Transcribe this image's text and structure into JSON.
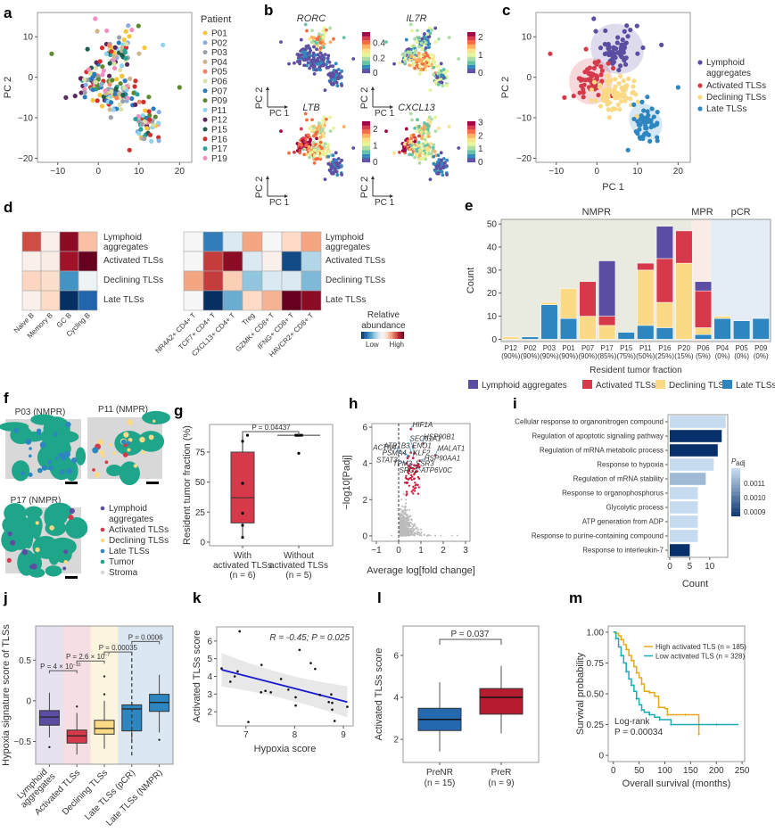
{
  "panel_labels": [
    "a",
    "b",
    "c",
    "d",
    "e",
    "f",
    "g",
    "h",
    "i",
    "j",
    "k",
    "l",
    "m"
  ],
  "colors": {
    "lymphoid": "#5b4ea2",
    "activated": "#d63a4a",
    "declining": "#fbd985",
    "late": "#2e86c1",
    "tumor": "#1fa58a",
    "stroma": "#d8d8d8"
  },
  "chart_data": [
    {
      "id": "a",
      "type": "scatter",
      "xlabel": "PC 1",
      "ylabel": "PC 2",
      "xlim": [
        -15,
        23
      ],
      "ylim": [
        -21,
        16
      ],
      "xticks": [
        -10,
        0,
        10,
        20
      ],
      "yticks": [
        -20,
        -10,
        0,
        10
      ],
      "legend_title": "Patient",
      "legend_position": "right",
      "legend": [
        {
          "name": "P01",
          "color": "#f5c63c"
        },
        {
          "name": "P02",
          "color": "#8aaee0"
        },
        {
          "name": "P03",
          "color": "#9aa0a6"
        },
        {
          "name": "P04",
          "color": "#d2b48c"
        },
        {
          "name": "P05",
          "color": "#f4845f"
        },
        {
          "name": "P06",
          "color": "#d9e3a5"
        },
        {
          "name": "P07",
          "color": "#2b7bba"
        },
        {
          "name": "P09",
          "color": "#5c8a2e"
        },
        {
          "name": "P11",
          "color": "#8fd3f0"
        },
        {
          "name": "P12",
          "color": "#5a2a5e"
        },
        {
          "name": "P15",
          "color": "#1d5f50"
        },
        {
          "name": "P16",
          "color": "#d32f2f"
        },
        {
          "name": "P17",
          "color": "#2aa198"
        },
        {
          "name": "P19",
          "color": "#f48fc0"
        }
      ]
    },
    {
      "id": "b",
      "type": "scatter",
      "subplots": [
        {
          "gene": "RORC",
          "colorbar_ticks": [
            "0",
            "0.2",
            "0.4"
          ],
          "colorbar_max": 0.55
        },
        {
          "gene": "IL7R",
          "colorbar_ticks": [
            "0",
            "1",
            "2"
          ],
          "colorbar_max": 2.3
        },
        {
          "gene": "LTB",
          "colorbar_ticks": [
            "0",
            "1",
            "2"
          ],
          "colorbar_max": 2.5
        },
        {
          "gene": "CXCL13",
          "colorbar_ticks": [
            "0",
            "1",
            "2",
            "3"
          ],
          "colorbar_max": 3.1
        }
      ],
      "xlabel": "PC 1",
      "ylabel": "PC 2"
    },
    {
      "id": "c",
      "type": "scatter",
      "xlabel": "PC 1",
      "ylabel": "PC 2",
      "xlim": [
        -15,
        23
      ],
      "ylim": [
        -21,
        16
      ],
      "xticks": [
        -10,
        0,
        10,
        20
      ],
      "yticks": [
        -20,
        -10,
        0,
        10
      ],
      "legend_position": "right",
      "legend": [
        "Lymphoid aggregates",
        "Activated TLSs",
        "Declining TLSs",
        "Late TLSs"
      ],
      "clusters": [
        {
          "name": "Lymphoid aggregates",
          "center": [
            5,
            7
          ],
          "spread": [
            3.5,
            3.2
          ]
        },
        {
          "name": "Activated TLSs",
          "center": [
            -1.5,
            -1
          ],
          "spread": [
            2.8,
            3
          ]
        },
        {
          "name": "Declining TLSs",
          "center": [
            5,
            -4
          ],
          "spread": [
            3.5,
            3
          ]
        },
        {
          "name": "Late TLSs",
          "center": [
            12,
            -11
          ],
          "spread": [
            2,
            2.5
          ]
        }
      ]
    },
    {
      "id": "d",
      "type": "heatmap",
      "rows": [
        "Lymphoid aggregates",
        "Activated TLSs",
        "Declining TLSs",
        "Late TLSs"
      ],
      "left": {
        "columns": [
          "Naive B",
          "Memory B",
          "GC B",
          "Cycling B"
        ],
        "values": [
          [
            0.65,
            0.05,
            0.9,
            0.3
          ],
          [
            0.05,
            0.08,
            0.85,
            1.0
          ],
          [
            0.22,
            0.18,
            -0.6,
            -0.05
          ],
          [
            0.05,
            0.2,
            -1.0,
            -0.8
          ]
        ]
      },
      "right": {
        "columns": [
          "NR4A2+ CD4+ T",
          "TCF7+ CD4+ T",
          "CXCL13+ CD4+ T",
          "Treg",
          "GZMK+ CD8+ T",
          "IFNG+ CD8+ T",
          "HAVCR2+ CD8+ T"
        ],
        "values": [
          [
            0.0,
            -0.7,
            -0.15,
            0.4,
            0.0,
            0.2,
            0.4
          ],
          [
            0.0,
            0.7,
            0.9,
            -0.15,
            0.05,
            -0.9,
            -0.3
          ],
          [
            0.4,
            0.7,
            0.25,
            -0.4,
            -0.15,
            -0.15,
            -0.45
          ],
          [
            0.0,
            -1.0,
            -0.5,
            0.2,
            0.35,
            1.0,
            0.9
          ]
        ]
      },
      "colorbar": {
        "title": "Relative abundance",
        "low": "Low",
        "high": "High"
      }
    },
    {
      "id": "e",
      "type": "bar",
      "stacked": true,
      "ylabel": "Count",
      "xlabel": "Resident tumor fraction",
      "ylim": [
        0,
        52
      ],
      "yticks": [
        0,
        10,
        20,
        30,
        40,
        50
      ],
      "groups": [
        {
          "name": "NMPR",
          "from": 0,
          "to": 9,
          "color": "#e9ebe1"
        },
        {
          "name": "MPR",
          "from": 10,
          "to": 10,
          "color": "#f9ece6"
        },
        {
          "name": "pCR",
          "from": 11,
          "to": 13,
          "color": "#e4ecf6"
        }
      ],
      "categories": [
        "P12",
        "P02",
        "P03",
        "P01",
        "P07",
        "P17",
        "P15",
        "P11",
        "P16",
        "P20",
        "P06",
        "P04",
        "P05",
        "P09"
      ],
      "category_sub": [
        "(90%)",
        "(90%)",
        "(90%)",
        "(90%)",
        "(90%)",
        "(85%)",
        "(75%)",
        "(50%)",
        "(25%)",
        "(15%)",
        "(5%)",
        "(0%)",
        "(0%)",
        "(0%)"
      ],
      "series": [
        {
          "name": "Late TLSs",
          "values": [
            0,
            1,
            15,
            9,
            0,
            0,
            3,
            6,
            5,
            0,
            2,
            9,
            8,
            9
          ]
        },
        {
          "name": "Declining TLSs",
          "values": [
            1,
            0,
            1,
            13,
            10,
            6,
            0,
            24,
            11,
            33,
            3,
            1,
            0,
            0
          ]
        },
        {
          "name": "Activated TLSs",
          "values": [
            0,
            0,
            0,
            0,
            15,
            4,
            0,
            3,
            19,
            14,
            16,
            0,
            0,
            0
          ]
        },
        {
          "name": "Lymphoid aggregates",
          "values": [
            0,
            0,
            0,
            0,
            0,
            24,
            0,
            0,
            14,
            0,
            4,
            0,
            0,
            0
          ]
        }
      ],
      "legend": [
        "Lymphoid aggregates",
        "Activated TLSs",
        "Declining TLSs",
        "Late TLSs"
      ],
      "legend_position": "bottom"
    },
    {
      "id": "f",
      "type": "other",
      "description": "Spatial maps",
      "samples": [
        "P03 (NMPR)",
        "P11 (NMPR)",
        "P17 (NMPR)"
      ],
      "legend": [
        "Lymphoid aggregates",
        "Activated TLSs",
        "Declining TLSs",
        "Late TLSs",
        "Tumor",
        "Stroma"
      ]
    },
    {
      "id": "g",
      "type": "box",
      "ylabel": "Resident tumor fraction (%)",
      "ylim": [
        -3,
        98
      ],
      "yticks": [
        0,
        25,
        50,
        75
      ],
      "groups": [
        {
          "label1": "With",
          "label2": "activated TLSs",
          "n": "(n = 6)",
          "q1": 16,
          "median": 37,
          "q3": 75,
          "min": 4,
          "max": 89,
          "points": [
            4,
            14,
            24,
            49,
            84,
            89
          ]
        },
        {
          "label1": "Without",
          "label2": "activated TLSs",
          "n": "(n = 5)",
          "q1": 89,
          "median": 89,
          "q3": 89,
          "min": 89,
          "max": 89,
          "points": [
            74,
            89,
            89,
            89,
            89
          ]
        }
      ],
      "annotation": "P = 0.04437"
    },
    {
      "id": "h",
      "type": "scatter",
      "xlabel": "Average log[fold change]",
      "ylabel": "-log10[Padj]",
      "xlim": [
        -1.2,
        3.2
      ],
      "ylim": [
        -0.3,
        6.2
      ],
      "xticks": [
        -1,
        0,
        1,
        2,
        3
      ],
      "yticks": [
        0,
        2,
        4,
        6
      ],
      "labeled_genes": [
        {
          "gene": "HIF1A",
          "x": 0.55,
          "y": 5.9
        },
        {
          "gene": "HSP90B1",
          "x": 1.1,
          "y": 5.1
        },
        {
          "gene": "SEC61A1",
          "x": 0.65,
          "y": 4.9
        },
        {
          "gene": "MALAT1",
          "x": 1.65,
          "y": 4.45
        },
        {
          "gene": "ENO1",
          "x": 0.7,
          "y": 4.55
        },
        {
          "gene": "ATP1B3",
          "x": 0.55,
          "y": 4.6
        },
        {
          "gene": "ACTN4",
          "x": 0.45,
          "y": 4.4
        },
        {
          "gene": "PSMA4",
          "x": 0.4,
          "y": 4.3
        },
        {
          "gene": "KLF2",
          "x": 0.65,
          "y": 4.3
        },
        {
          "gene": "HSP90AA1",
          "x": 0.95,
          "y": 4.15
        },
        {
          "gene": "STAT3",
          "x": 0.35,
          "y": 4.0
        },
        {
          "gene": "TPM3",
          "x": 0.45,
          "y": 3.85
        },
        {
          "gene": "SSR3",
          "x": 0.7,
          "y": 3.9
        },
        {
          "gene": "ATP6V0C",
          "x": 0.85,
          "y": 3.8
        },
        {
          "gene": "SRC1",
          "x": 0.45,
          "y": 3.6
        }
      ]
    },
    {
      "id": "i",
      "type": "bar",
      "orientation": "horizontal",
      "xlabel": "Count",
      "xlim": [
        0,
        14.5
      ],
      "xticks": [
        0,
        5,
        10
      ],
      "categories": [
        "Cellular response to organonitrogen compound",
        "Regulation of apoptotic signaling pathway",
        "Regulation of mRNA metabolic process",
        "Response to hypoxia",
        "Regulation of mRNA stability",
        "Response to organophosphorus",
        "Glycolytic process",
        "ATP generation from ADP",
        "Response to purine-containing compound",
        "Response to interleukin-7"
      ],
      "values": [
        14,
        13,
        12,
        11,
        9,
        7,
        7,
        7,
        7,
        5
      ],
      "padj": [
        0.00115,
        0.0009,
        0.0009,
        0.00115,
        0.0011,
        0.00115,
        0.00115,
        0.00115,
        0.00115,
        0.0009
      ],
      "colorbar": {
        "title": "Padj",
        "ticks": [
          "0.0011",
          "0.0010",
          "0.0009"
        ]
      }
    },
    {
      "id": "j",
      "type": "box",
      "ylabel": "Hypoxia signature score of TLSs",
      "ylim": [
        -0.78,
        0.92
      ],
      "yticks": [
        -0.5,
        0,
        0.5
      ],
      "ytick_labels": [
        "-0.5",
        "0",
        "0.5"
      ],
      "groups": [
        {
          "label": "Lymphoid aggregates",
          "q1": -0.3,
          "median": -0.2,
          "q3": -0.12,
          "min": -0.45,
          "max": 0.1,
          "outliers": [
            -0.57
          ],
          "color": "#5b4ea2",
          "bg": "#e6e2ef"
        },
        {
          "label": "Activated TLSs",
          "q1": -0.52,
          "median": -0.43,
          "q3": -0.36,
          "min": -0.66,
          "max": -0.15,
          "outliers": [
            -0.07
          ],
          "color": "#d63a4a",
          "bg": "#f6dfe2"
        },
        {
          "label": "Declining TLSs",
          "q1": -0.41,
          "median": -0.34,
          "q3": -0.24,
          "min": -0.59,
          "max": 0.0,
          "outliers": [
            0.08,
            0.3
          ],
          "color": "#fbd985",
          "bg": "#fbf5de"
        },
        {
          "label": "Late TLSs (pCR)",
          "q1": -0.37,
          "median": -0.1,
          "q3": -0.05,
          "min": -0.49,
          "max": -0.01,
          "outliers": [],
          "color": "#2e86c1",
          "bg": "#dbe7f2"
        },
        {
          "label": "Late TLSs (NMPR)",
          "q1": -0.13,
          "median": -0.02,
          "q3": 0.08,
          "min": -0.39,
          "max": 0.32,
          "outliers": [
            -0.48
          ],
          "color": "#2e86c1",
          "bg": "#dbe7f2"
        }
      ],
      "annotations": [
        "P = 4 × 10^-10",
        "P = 2.6 × 10^-7",
        "P = 0.00035",
        "P = 0.0006"
      ]
    },
    {
      "id": "k",
      "type": "scatter",
      "xlabel": "Hypoxia score",
      "ylabel": "Activated TLSs score",
      "xlim": [
        6.4,
        9.2
      ],
      "ylim": [
        1.2,
        6.8
      ],
      "xticks": [
        7,
        8,
        9
      ],
      "yticks": [
        2,
        3,
        4,
        5,
        6
      ],
      "annotation": "R = -0.45; P = 0.025",
      "x": [
        6.5,
        6.68,
        6.77,
        6.83,
        6.87,
        7.05,
        7.31,
        7.32,
        7.4,
        7.51,
        7.72,
        7.87,
        8.02,
        8.02,
        8.1,
        8.33,
        8.42,
        8.52,
        8.7,
        8.75,
        8.77,
        8.77,
        8.82,
        9.08
      ],
      "y": [
        4.45,
        3.7,
        4.0,
        4.28,
        6.55,
        1.42,
        3.1,
        4.65,
        3.18,
        3.1,
        3.85,
        3.25,
        2.82,
        2.35,
        5.5,
        4.75,
        4.42,
        2.95,
        2.55,
        2.98,
        2.5,
        2.12,
        1.48,
        2.28
      ],
      "fit": {
        "x0": 6.5,
        "y0": 4.38,
        "x1": 9.08,
        "y1": 2.55
      }
    },
    {
      "id": "l",
      "type": "box",
      "ylabel": "Activated TLSs score",
      "ylim": [
        0.9,
        7.4
      ],
      "yticks": [
        2,
        4,
        6
      ],
      "groups": [
        {
          "label": "PreNR",
          "n": "(n = 15)",
          "q1": 2.42,
          "median": 2.95,
          "q3": 3.48,
          "min": 1.42,
          "max": 4.72,
          "color": "#2468b0"
        },
        {
          "label": "PreR",
          "n": "(n = 9)",
          "q1": 3.2,
          "median": 4.0,
          "q3": 4.42,
          "min": 2.28,
          "max": 5.5,
          "color": "#b51c30"
        }
      ],
      "annotation": "P = 0.037"
    },
    {
      "id": "m",
      "type": "line",
      "subtype": "kaplan-meier",
      "xlabel": "Overall survival (months)",
      "ylabel": "Survival probability",
      "xlim": [
        -10,
        255
      ],
      "ylim": [
        -0.05,
        1.05
      ],
      "xticks": [
        0,
        50,
        100,
        150,
        200,
        250
      ],
      "yticks": [
        0,
        0.25,
        0.5,
        0.75,
        1.0
      ],
      "ytick_labels": [
        "0",
        "0.25",
        "0.50",
        "0.75",
        "1.00"
      ],
      "series": [
        {
          "name": "High activated TLS (n = 185)",
          "color": "#e5a81b",
          "x": [
            0,
            5,
            10,
            15,
            20,
            25,
            30,
            35,
            40,
            45,
            50,
            55,
            60,
            70,
            80,
            88,
            100,
            105,
            120,
            140,
            160,
            166
          ],
          "y": [
            1.0,
            0.99,
            0.97,
            0.94,
            0.9,
            0.86,
            0.81,
            0.77,
            0.72,
            0.67,
            0.63,
            0.58,
            0.52,
            0.51,
            0.48,
            0.39,
            0.38,
            0.33,
            0.33,
            0.33,
            0.33,
            0.17
          ]
        },
        {
          "name": "Low activated TLS (n = 328)",
          "color": "#1aabb3",
          "x": [
            0,
            5,
            10,
            15,
            20,
            25,
            30,
            35,
            40,
            45,
            50,
            55,
            60,
            70,
            80,
            90,
            100,
            112,
            150,
            200,
            243
          ],
          "y": [
            1.0,
            0.95,
            0.88,
            0.81,
            0.75,
            0.68,
            0.62,
            0.57,
            0.52,
            0.46,
            0.41,
            0.37,
            0.35,
            0.33,
            0.31,
            0.29,
            0.29,
            0.25,
            0.25,
            0.25,
            0.25
          ]
        }
      ],
      "annotation_line1": "Log-rank",
      "annotation_line2": "P = 0.00034",
      "legend_position": "top-right"
    }
  ]
}
